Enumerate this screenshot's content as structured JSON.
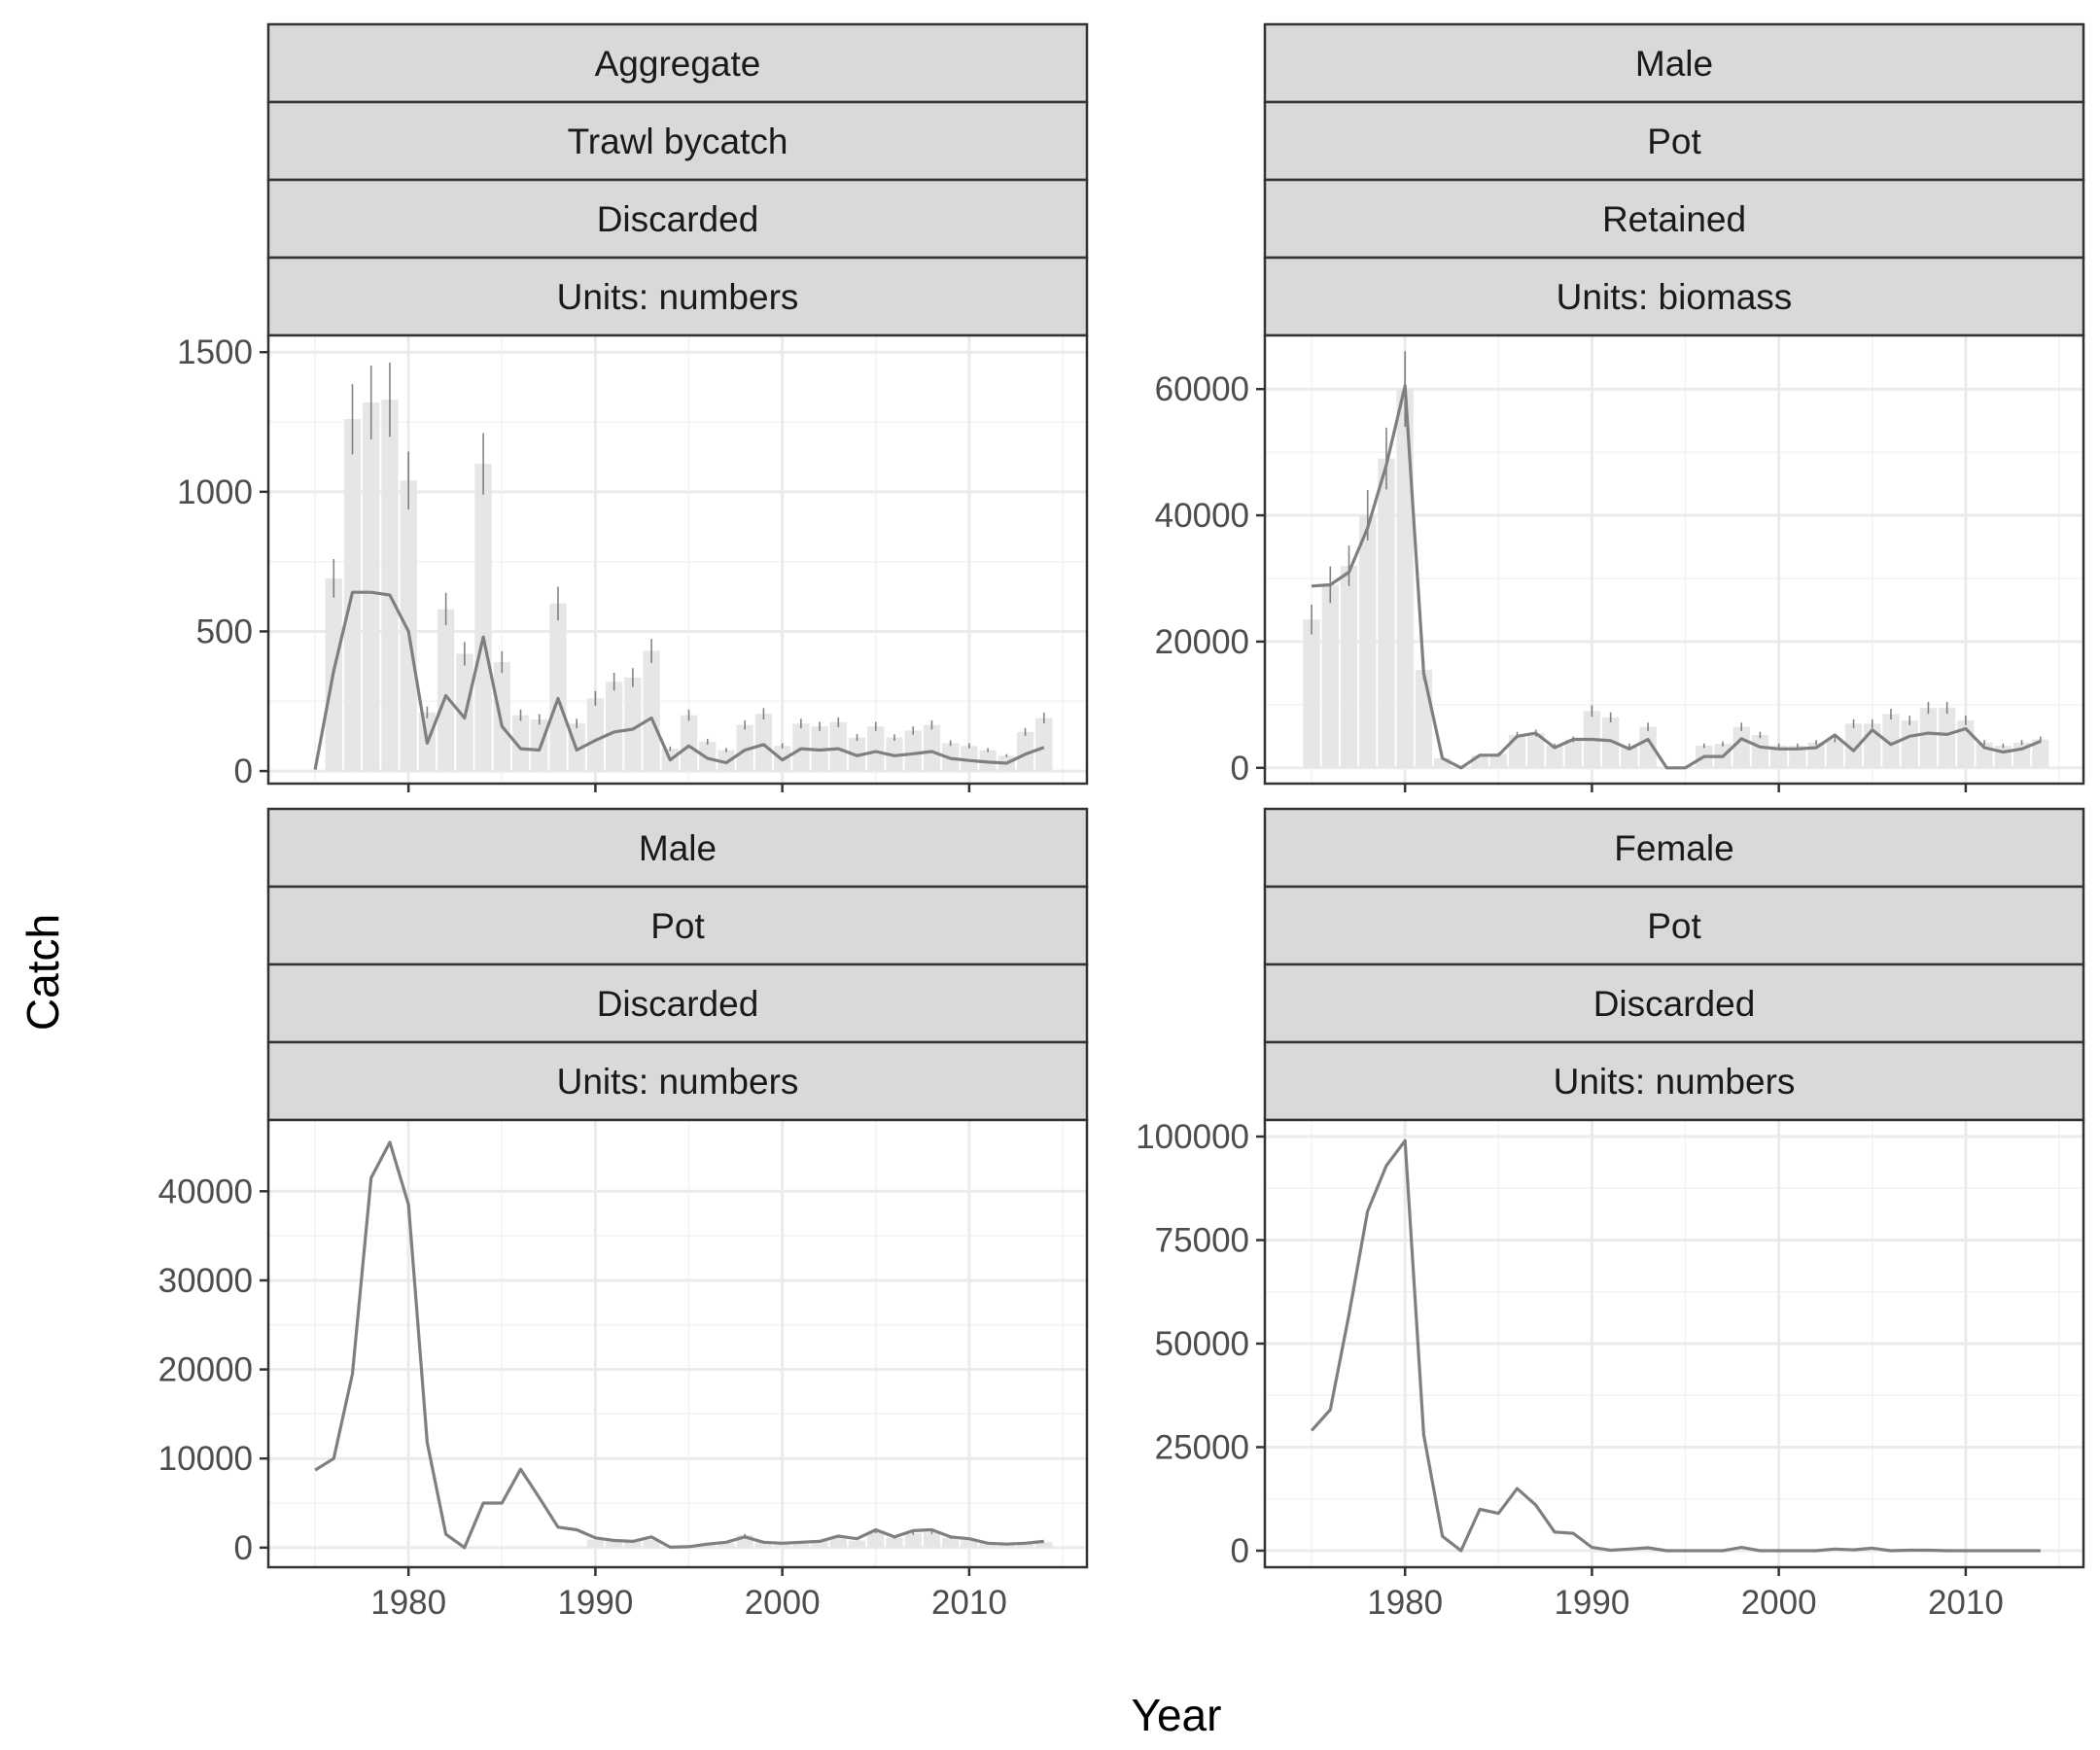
{
  "chart_data": {
    "type": "faceted bar + line",
    "xlabel": "Year",
    "ylabel": "Catch",
    "x_ticks": [
      1980,
      1990,
      2000,
      2010
    ],
    "xlim": [
      1972.5,
      2016.3
    ],
    "grid": true,
    "colors": {
      "line": "#7f7f7f",
      "bar": "#e6e6e6",
      "errorbar": "#666666",
      "strip_fill": "#d9d9d9",
      "strip_border": "#333333",
      "grid_major": "#ebebeb",
      "panel_border": "#333333"
    },
    "panels": [
      {
        "strips": [
          "Aggregate",
          "Trawl bycatch",
          "Discarded",
          "Units: numbers"
        ],
        "ylim": [
          -45,
          1560
        ],
        "y_ticks": [
          0,
          500,
          1000,
          1500
        ],
        "years": [
          1975,
          1976,
          1977,
          1978,
          1979,
          1980,
          1981,
          1982,
          1983,
          1984,
          1985,
          1986,
          1987,
          1988,
          1989,
          1990,
          1991,
          1992,
          1993,
          1994,
          1995,
          1996,
          1997,
          1998,
          1999,
          2000,
          2001,
          2002,
          2003,
          2004,
          2005,
          2006,
          2007,
          2008,
          2009,
          2010,
          2011,
          2012,
          2013,
          2014
        ],
        "observed": [
          0,
          690,
          1260,
          1320,
          1330,
          1040,
          210,
          580,
          420,
          1100,
          390,
          200,
          185,
          600,
          170,
          260,
          320,
          335,
          430,
          80,
          200,
          105,
          75,
          165,
          205,
          90,
          170,
          160,
          175,
          120,
          160,
          120,
          145,
          165,
          100,
          90,
          75,
          55,
          140,
          190
        ],
        "predicted": [
          5,
          360,
          640,
          640,
          630,
          500,
          100,
          270,
          190,
          480,
          160,
          80,
          75,
          260,
          75,
          110,
          140,
          150,
          190,
          40,
          90,
          45,
          30,
          75,
          95,
          40,
          80,
          75,
          80,
          55,
          70,
          55,
          62,
          70,
          45,
          38,
          32,
          28,
          60,
          85
        ]
      },
      {
        "strips": [
          "Male",
          "Pot",
          "Retained",
          "Units: biomass"
        ],
        "ylim": [
          -2500,
          68500
        ],
        "y_ticks": [
          0,
          20000,
          40000,
          60000
        ],
        "years": [
          1975,
          1976,
          1977,
          1978,
          1979,
          1980,
          1981,
          1982,
          1983,
          1984,
          1985,
          1986,
          1987,
          1988,
          1989,
          1990,
          1991,
          1992,
          1993,
          1994,
          1995,
          1996,
          1997,
          1998,
          1999,
          2000,
          2001,
          2002,
          2003,
          2004,
          2005,
          2006,
          2007,
          2008,
          2009,
          2010,
          2011,
          2012,
          2013,
          2014
        ],
        "observed": [
          23500,
          29000,
          32000,
          40000,
          49000,
          60000,
          15500,
          1500,
          0,
          2000,
          2200,
          5200,
          5500,
          3500,
          4500,
          9000,
          8000,
          3500,
          6500,
          0,
          0,
          3500,
          3800,
          6500,
          5200,
          3500,
          3500,
          4000,
          4500,
          7000,
          7000,
          8500,
          7500,
          9500,
          9500,
          7500,
          4000,
          3500,
          4000,
          4500
        ],
        "predicted": [
          28800,
          29000,
          31000,
          38000,
          48000,
          60500,
          15000,
          1500,
          0,
          2000,
          2000,
          5000,
          5500,
          3200,
          4500,
          4500,
          4300,
          3000,
          4500,
          0,
          0,
          1800,
          1800,
          4600,
          3300,
          3000,
          3000,
          3200,
          5200,
          2700,
          6000,
          3700,
          5000,
          5500,
          5300,
          6200,
          3200,
          2500,
          3000,
          4200
        ]
      },
      {
        "strips": [
          "Male",
          "Pot",
          "Discarded",
          "Units: numbers"
        ],
        "ylim": [
          -2200,
          48000
        ],
        "y_ticks": [
          0,
          10000,
          20000,
          30000,
          40000
        ],
        "years": [
          1975,
          1976,
          1977,
          1978,
          1979,
          1980,
          1981,
          1982,
          1983,
          1984,
          1985,
          1986,
          1987,
          1988,
          1989,
          1990,
          1991,
          1992,
          1993,
          1994,
          1995,
          1996,
          1997,
          1998,
          1999,
          2000,
          2001,
          2002,
          2003,
          2004,
          2005,
          2006,
          2007,
          2008,
          2009,
          2010,
          2011,
          2012,
          2013,
          2014
        ],
        "observed": [
          0,
          0,
          0,
          0,
          0,
          0,
          0,
          0,
          0,
          0,
          0,
          0,
          0,
          0,
          0,
          900,
          700,
          700,
          900,
          100,
          100,
          300,
          500,
          1400,
          600,
          500,
          600,
          700,
          1200,
          800,
          1800,
          1100,
          1600,
          1700,
          1100,
          900,
          500,
          400,
          500,
          600
        ],
        "predicted": [
          8700,
          10000,
          19500,
          41500,
          45500,
          38500,
          11800,
          1500,
          0,
          5000,
          5000,
          8800,
          5600,
          2300,
          2000,
          1100,
          800,
          700,
          1200,
          50,
          100,
          400,
          600,
          1200,
          600,
          500,
          600,
          700,
          1300,
          1000,
          2000,
          1200,
          1900,
          2000,
          1200,
          1000,
          500,
          400,
          500,
          700
        ]
      },
      {
        "strips": [
          "Female",
          "Pot",
          "Discarded",
          "Units: numbers"
        ],
        "ylim": [
          -4000,
          104000
        ],
        "y_ticks": [
          0,
          25000,
          50000,
          75000,
          100000
        ],
        "years": [
          1975,
          1976,
          1977,
          1978,
          1979,
          1980,
          1981,
          1982,
          1983,
          1984,
          1985,
          1986,
          1987,
          1988,
          1989,
          1990,
          1991,
          1992,
          1993,
          1994,
          1995,
          1996,
          1997,
          1998,
          1999,
          2000,
          2001,
          2002,
          2003,
          2004,
          2005,
          2006,
          2007,
          2008,
          2009,
          2010,
          2011,
          2012,
          2013,
          2014
        ],
        "observed": [],
        "predicted": [
          29000,
          34000,
          57000,
          82000,
          93000,
          99000,
          28000,
          3500,
          0,
          10000,
          9000,
          15000,
          11000,
          4500,
          4200,
          800,
          100,
          400,
          700,
          0,
          0,
          0,
          0,
          800,
          0,
          0,
          0,
          0,
          400,
          200,
          600,
          0,
          100,
          100,
          0,
          0,
          0,
          0,
          0,
          0
        ]
      }
    ]
  }
}
